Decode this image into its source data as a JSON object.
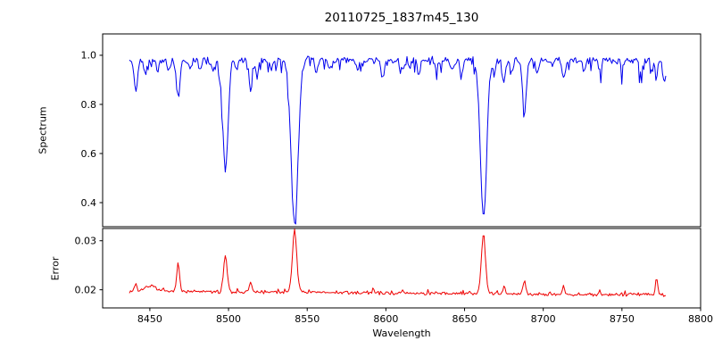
{
  "chart_data": {
    "type": "line",
    "title": "20110725_1837m45_130",
    "xlabel": "Wavelength",
    "xlim": [
      8420,
      8800
    ],
    "x_ticks": [
      8450,
      8500,
      8550,
      8600,
      8650,
      8700,
      8750,
      8800
    ],
    "x_tick_labels": [
      "8450",
      "8500",
      "8550",
      "8600",
      "8650",
      "8700",
      "8750",
      "8800"
    ],
    "grid": false,
    "legend": "none",
    "panels": [
      {
        "name": "spectrum",
        "ylabel": "Spectrum",
        "ylim": [
          0.302,
          1.087
        ],
        "y_ticks": [
          0.4,
          0.6,
          0.8,
          1.0
        ],
        "y_tick_labels": [
          "0.4",
          "0.6",
          "0.8",
          "1.0"
        ],
        "line_color": "#0000ee",
        "data_x_range": [
          8437,
          8778
        ],
        "continuum": 0.98,
        "noise_amplitude": 0.018,
        "spike_probability": 0.15,
        "spike_depth": 0.05,
        "seed": 42,
        "absorption_lines": [
          {
            "center": 8441,
            "depth": 0.12,
            "sigma": 1.0
          },
          {
            "center": 8447,
            "depth": 0.06,
            "sigma": 0.8
          },
          {
            "center": 8455,
            "depth": 0.05,
            "sigma": 0.8
          },
          {
            "center": 8462,
            "depth": 0.04,
            "sigma": 0.8
          },
          {
            "center": 8468,
            "depth": 0.15,
            "sigma": 1.1
          },
          {
            "center": 8476,
            "depth": 0.04,
            "sigma": 0.8
          },
          {
            "center": 8482,
            "depth": 0.05,
            "sigma": 0.8
          },
          {
            "center": 8490,
            "depth": 0.05,
            "sigma": 0.8
          },
          {
            "center": 8498,
            "depth": 0.44,
            "sigma": 1.7
          },
          {
            "center": 8505,
            "depth": 0.05,
            "sigma": 0.8
          },
          {
            "center": 8514,
            "depth": 0.12,
            "sigma": 1.0
          },
          {
            "center": 8518,
            "depth": 0.07,
            "sigma": 0.8
          },
          {
            "center": 8527,
            "depth": 0.04,
            "sigma": 0.8
          },
          {
            "center": 8542,
            "depth": 0.66,
            "sigma": 2.2
          },
          {
            "center": 8556,
            "depth": 0.05,
            "sigma": 0.8
          },
          {
            "center": 8564,
            "depth": 0.04,
            "sigma": 0.8
          },
          {
            "center": 8582,
            "depth": 0.05,
            "sigma": 0.8
          },
          {
            "center": 8598,
            "depth": 0.08,
            "sigma": 1.0
          },
          {
            "center": 8611,
            "depth": 0.05,
            "sigma": 0.8
          },
          {
            "center": 8621,
            "depth": 0.06,
            "sigma": 0.8
          },
          {
            "center": 8632,
            "depth": 0.04,
            "sigma": 0.8
          },
          {
            "center": 8642,
            "depth": 0.05,
            "sigma": 0.8
          },
          {
            "center": 8648,
            "depth": 0.07,
            "sigma": 0.9
          },
          {
            "center": 8662,
            "depth": 0.63,
            "sigma": 2.0
          },
          {
            "center": 8669,
            "depth": 0.06,
            "sigma": 0.8
          },
          {
            "center": 8675,
            "depth": 0.1,
            "sigma": 1.0
          },
          {
            "center": 8680,
            "depth": 0.06,
            "sigma": 0.8
          },
          {
            "center": 8688,
            "depth": 0.21,
            "sigma": 1.2
          },
          {
            "center": 8696,
            "depth": 0.05,
            "sigma": 0.8
          },
          {
            "center": 8713,
            "depth": 0.08,
            "sigma": 1.0
          },
          {
            "center": 8726,
            "depth": 0.04,
            "sigma": 0.8
          },
          {
            "center": 8736,
            "depth": 0.05,
            "sigma": 0.8
          },
          {
            "center": 8750,
            "depth": 0.04,
            "sigma": 0.8
          },
          {
            "center": 8762,
            "depth": 0.05,
            "sigma": 0.8
          },
          {
            "center": 8772,
            "depth": 0.06,
            "sigma": 0.8
          },
          {
            "center": 8777,
            "depth": 0.09,
            "sigma": 1.0
          }
        ]
      },
      {
        "name": "error",
        "ylabel": "Error",
        "ylim": [
          0.0163,
          0.0325
        ],
        "y_ticks": [
          0.02,
          0.03
        ],
        "y_tick_labels": [
          "0.02",
          "0.03"
        ],
        "line_color": "#ee0000",
        "data_x_range": [
          8437,
          8778
        ],
        "baseline_start": 0.0197,
        "baseline_slope": -2.2e-06,
        "noise_amplitude": 0.0004,
        "spike_probability": 0.08,
        "spike_height": 0.0008,
        "seed": 7,
        "emission_peaks": [
          {
            "center": 8441,
            "height": 0.0015,
            "sigma": 0.8
          },
          {
            "center": 8450,
            "height": 0.0012,
            "sigma": 3.0
          },
          {
            "center": 8468,
            "height": 0.006,
            "sigma": 0.9
          },
          {
            "center": 8498,
            "height": 0.0075,
            "sigma": 1.1
          },
          {
            "center": 8514,
            "height": 0.002,
            "sigma": 0.8
          },
          {
            "center": 8542,
            "height": 0.0125,
            "sigma": 1.4
          },
          {
            "center": 8662,
            "height": 0.012,
            "sigma": 1.3
          },
          {
            "center": 8675,
            "height": 0.0015,
            "sigma": 0.8
          },
          {
            "center": 8688,
            "height": 0.0025,
            "sigma": 0.9
          },
          {
            "center": 8713,
            "height": 0.0015,
            "sigma": 0.8
          },
          {
            "center": 8772,
            "height": 0.0035,
            "sigma": 0.7
          }
        ]
      }
    ]
  }
}
